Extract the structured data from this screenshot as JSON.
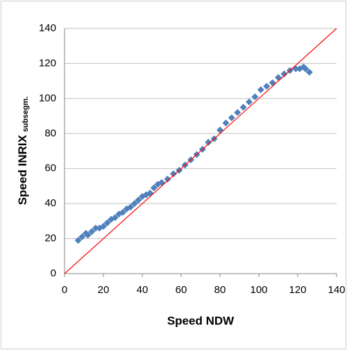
{
  "chart_data": {
    "type": "scatter",
    "x_label": "Speed NDW",
    "y_label": "Speed INRIX",
    "y_label_sub": "subsegm.",
    "xlim": [
      0,
      140
    ],
    "xticks": [
      0,
      20,
      40,
      60,
      80,
      100,
      120,
      140
    ],
    "ylim": [
      0,
      140
    ],
    "yticks": [
      0,
      20,
      40,
      60,
      80,
      100,
      120,
      140
    ],
    "grid": true,
    "series": [
      {
        "color": "#4f81bd",
        "x": [
          7,
          9,
          11,
          12,
          14,
          16,
          18,
          20,
          22,
          24,
          26,
          28,
          30,
          32,
          34,
          36,
          38,
          40,
          42,
          44,
          46,
          48,
          50,
          53,
          56,
          59,
          62,
          65,
          68,
          71,
          74,
          77,
          80,
          83,
          86,
          89,
          92,
          95,
          98,
          101,
          104,
          107,
          110,
          113,
          116,
          119,
          121,
          123,
          124,
          126
        ],
        "values": [
          19,
          21,
          23,
          22,
          24,
          26,
          26,
          27,
          29,
          31,
          32,
          34,
          35,
          37,
          38,
          40,
          42,
          44,
          45,
          46,
          49,
          51,
          52,
          54,
          57,
          59,
          62,
          65,
          68,
          71,
          75,
          77,
          82,
          86,
          89,
          92,
          95,
          98,
          101,
          105,
          107,
          109,
          112,
          114,
          116,
          117,
          117,
          118,
          117,
          115
        ]
      }
    ],
    "reference_line": {
      "color": "#ff0000",
      "x": [
        0,
        140
      ],
      "values": [
        0,
        140
      ]
    }
  }
}
